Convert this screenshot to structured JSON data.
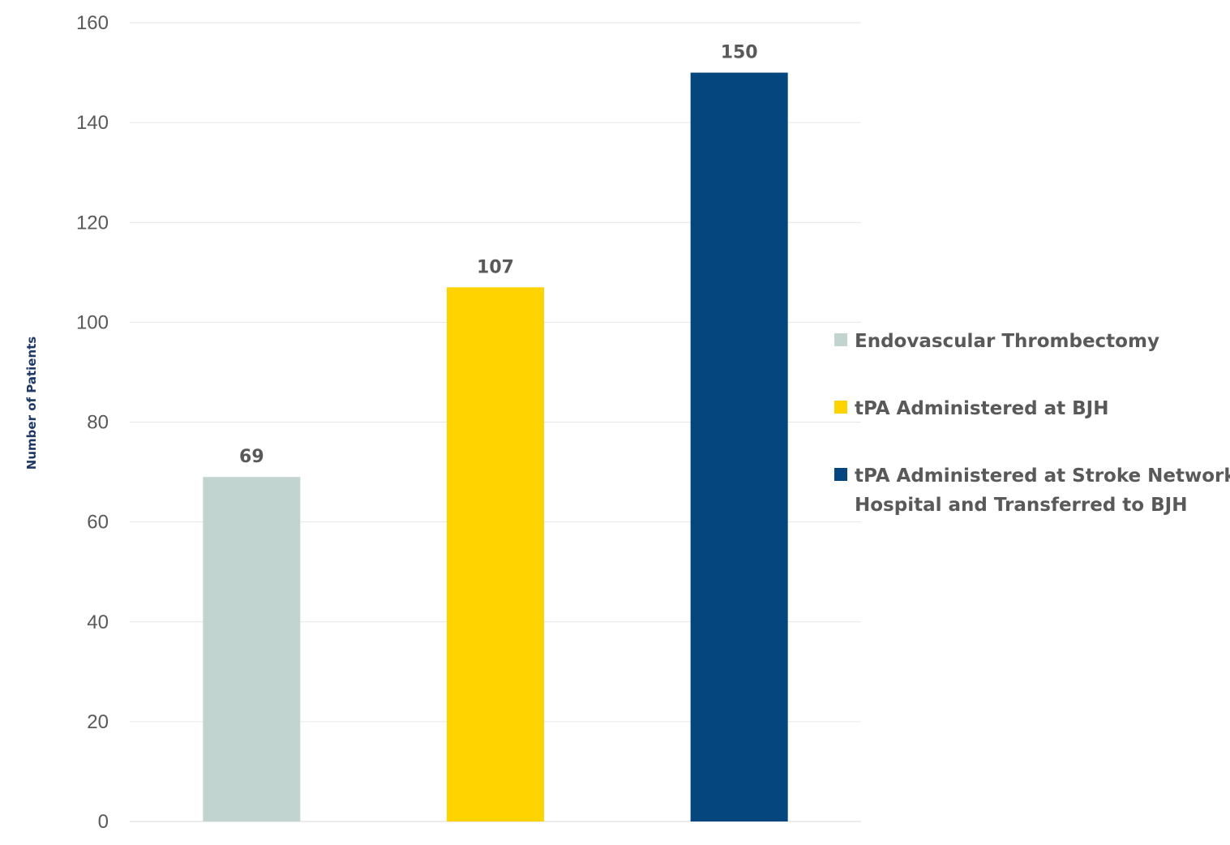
{
  "chart_data": {
    "type": "bar",
    "title": "",
    "xlabel": "",
    "ylabel": "Number of Patients",
    "ylim": [
      0,
      160
    ],
    "y_ticks": [
      0,
      20,
      40,
      60,
      80,
      100,
      120,
      140,
      160
    ],
    "grid": true,
    "legend_position": "right",
    "categories": [
      "Endovascular Thrombectomy",
      "tPA Administered at BJH",
      "tPA Administered at Stroke Network Hospital and Transferred to BJH"
    ],
    "values": [
      69,
      107,
      150
    ],
    "data_labels": [
      "69",
      "107",
      "150"
    ],
    "colors": [
      "#c1d4cf",
      "#ffd300",
      "#05467f"
    ],
    "legend": {
      "entries": [
        {
          "lines": [
            "Endovascular Thrombectomy"
          ],
          "color": "#c1d4cf"
        },
        {
          "lines": [
            "tPA Administered at BJH"
          ],
          "color": "#ffd300"
        },
        {
          "lines": [
            "tPA Administered at Stroke Network",
            "Hospital and Transferred to BJH"
          ],
          "color": "#05467f"
        }
      ]
    }
  }
}
